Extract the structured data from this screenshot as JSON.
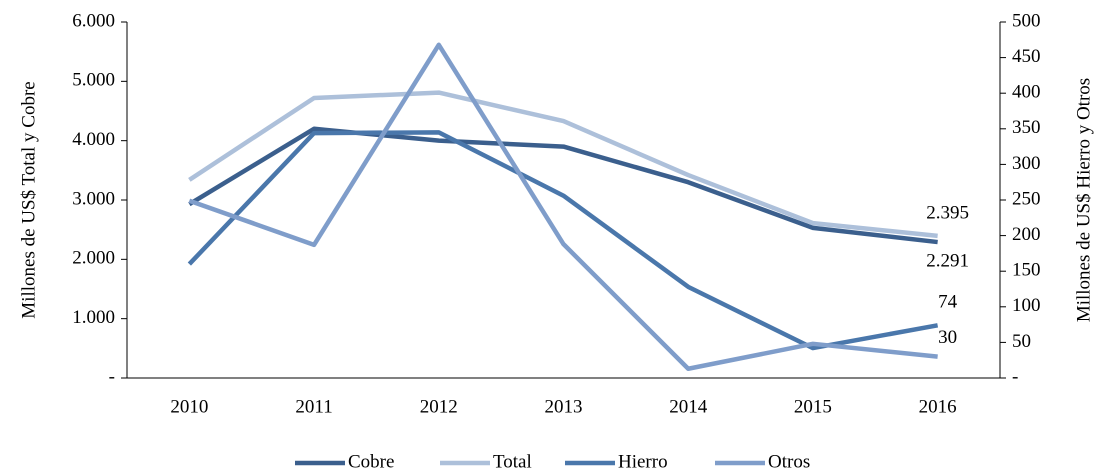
{
  "chart_data": {
    "type": "line",
    "categories": [
      "2010",
      "2011",
      "2012",
      "2013",
      "2014",
      "2015",
      "2016"
    ],
    "ylabel": "Millones de US$ Total y Cobre",
    "y2label": "Millones de US$ Hierro y Otros",
    "ylim": [
      0,
      6000
    ],
    "yticks": [
      {
        "value": 0,
        "label": "-"
      },
      {
        "value": 1000,
        "label": "1.000"
      },
      {
        "value": 2000,
        "label": "2.000"
      },
      {
        "value": 3000,
        "label": "3.000"
      },
      {
        "value": 4000,
        "label": "4.000"
      },
      {
        "value": 5000,
        "label": "5.000"
      },
      {
        "value": 6000,
        "label": "6.000"
      }
    ],
    "y2lim": [
      0,
      500
    ],
    "y2ticks": [
      {
        "value": 0,
        "label": "-"
      },
      50,
      100,
      150,
      200,
      250,
      300,
      350,
      400,
      450,
      500
    ],
    "legend": "bottom",
    "series": [
      {
        "name": "Cobre",
        "color": "#3b5f8d",
        "values": [
          2930,
          4200,
          4000,
          3900,
          3300,
          2530,
          2291
        ],
        "value_labels": [
          null,
          null,
          null,
          null,
          null,
          null,
          "2.291"
        ]
      },
      {
        "name": "Total",
        "color": "#adc0da",
        "values": [
          3340,
          4720,
          4810,
          4330,
          3420,
          2610,
          2395
        ],
        "value_labels": [
          null,
          null,
          null,
          null,
          null,
          null,
          "2.395"
        ]
      },
      {
        "name": "Hierro",
        "color": "#4a77ab",
        "axis": "y2",
        "values": [
          160,
          344,
          345,
          256,
          128,
          42,
          74
        ],
        "value_labels": [
          null,
          null,
          null,
          null,
          null,
          null,
          "74"
        ]
      },
      {
        "name": "Otros",
        "color": "#7f9dca",
        "axis": "y2",
        "values": [
          249,
          187,
          468,
          188,
          13,
          48,
          30
        ],
        "value_labels": [
          null,
          null,
          null,
          null,
          null,
          null,
          "30"
        ]
      }
    ]
  }
}
